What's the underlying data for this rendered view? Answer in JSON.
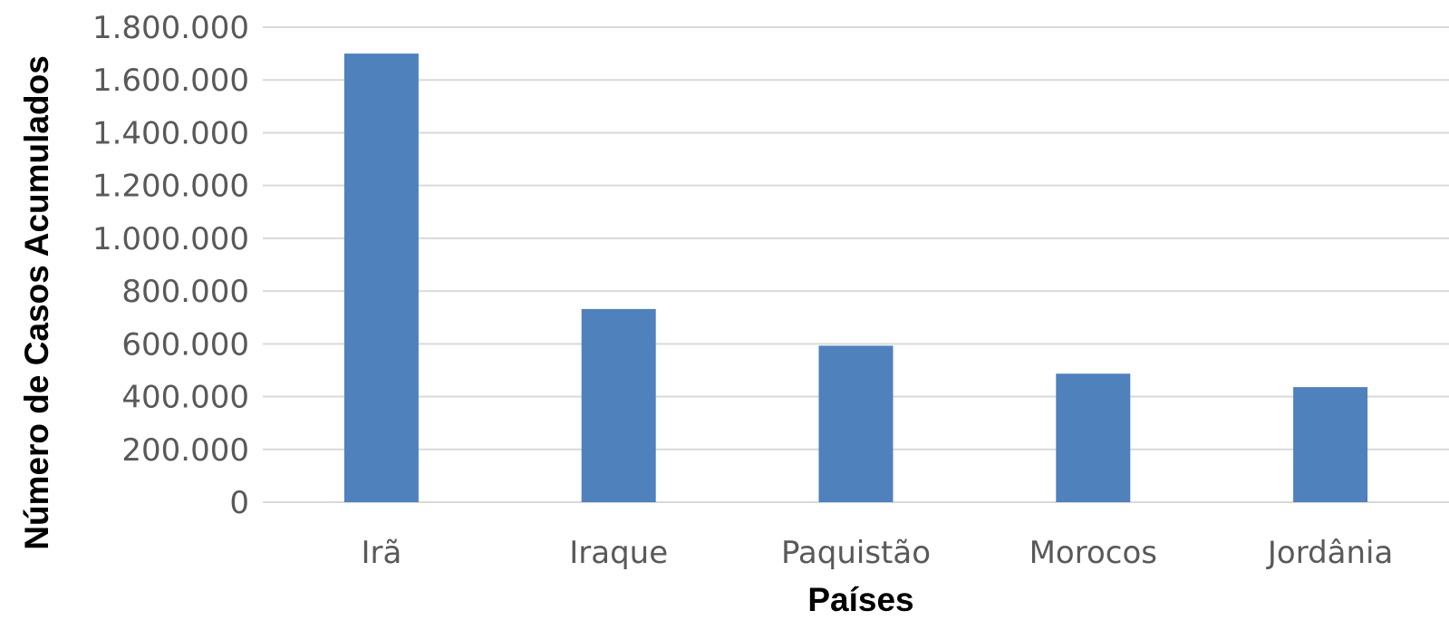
{
  "chart_data": {
    "type": "bar",
    "categories": [
      "Irã",
      "Iraque",
      "Paquistão",
      "Morocos",
      "Jordânia"
    ],
    "values": [
      1700000,
      732000,
      593000,
      487000,
      436000
    ],
    "xlabel": "Países",
    "ylabel": "Número de Casos Acumulados",
    "ylim": [
      0,
      1800000
    ],
    "yticks": [
      0,
      200000,
      400000,
      600000,
      800000,
      1000000,
      1200000,
      1400000,
      1600000,
      1800000
    ],
    "ytick_labels": [
      "0",
      "200.000",
      "400.000",
      "600.000",
      "800.000",
      "1.000.000",
      "1.200.000",
      "1.400.000",
      "1.600.000",
      "1.800.000"
    ],
    "grid": true,
    "legend": "none",
    "colors": {
      "bar": "#4F81BD",
      "grid": "#D9D9D9",
      "tick_text": "#595959",
      "axis_title": "#000000"
    }
  }
}
